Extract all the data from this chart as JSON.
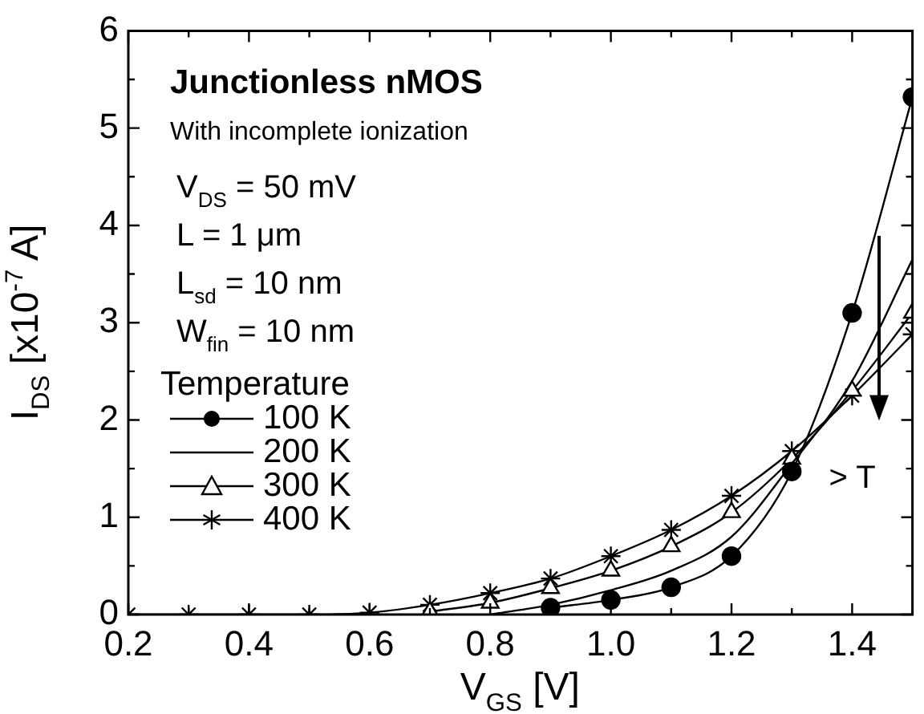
{
  "chart_data": {
    "type": "line",
    "title": "Junctionless nMOS",
    "subtitle": "With incomplete ionization",
    "xlabel": "V$_{GS}$ [V]",
    "ylabel": "I$_{DS}$ [x10$^{-7}$ A]",
    "legend_title": "Temperature",
    "legend": "left",
    "annotations": [
      "V$_{DS}$ = 50 mV",
      "L = 1 μm",
      "L$_{sd}$ = 10 nm",
      "W$_{fin}$ = 10 nm",
      "> T"
    ],
    "xlim": [
      0.2,
      1.5
    ],
    "xticks": [
      0.2,
      {
        "value": 0.3,
        "label": null
      },
      0.4,
      {
        "value": 0.5,
        "label": null
      },
      0.6,
      {
        "value": 0.7,
        "label": null
      },
      0.8,
      {
        "value": 0.9,
        "label": null
      },
      {
        "value": 1,
        "label": "1.0"
      },
      {
        "value": 1.1,
        "label": null
      },
      1.2,
      {
        "value": 1.3,
        "label": null
      },
      1.4
    ],
    "ylim": [
      0,
      6
    ],
    "yticks": [
      0,
      {
        "value": 0.5,
        "label": null
      },
      1,
      {
        "value": 1.5,
        "label": null
      },
      2,
      {
        "value": 2.5,
        "label": null
      },
      3,
      {
        "value": 3.5,
        "label": null
      },
      4,
      {
        "value": 4.5,
        "label": null
      },
      5,
      {
        "value": 5.5,
        "label": null
      },
      6
    ],
    "line_style": "solid",
    "series": [
      {
        "name": "100 K",
        "color": "#000000",
        "marker": "circle",
        "x": [
          0.9,
          1.0,
          1.1,
          1.2,
          1.3,
          1.4,
          1.5
        ],
        "values": [
          0.07,
          0.15,
          0.28,
          0.6,
          1.47,
          3.1,
          5.32
        ]
      },
      {
        "name": "200 K",
        "color": "#000000",
        "marker": "none",
        "x": [
          0.8,
          0.9,
          1.0,
          1.1,
          1.2,
          1.3,
          1.4,
          1.5
        ],
        "values": [
          0,
          0.1,
          0.25,
          0.45,
          0.8,
          1.55,
          2.4,
          3.65
        ]
      },
      {
        "name": "300 K",
        "color": "#000000",
        "marker": "triangle",
        "x": [
          0.7,
          0.8,
          0.9,
          1.0,
          1.1,
          1.2,
          1.3,
          1.4,
          1.5
        ],
        "values": [
          0.03,
          0.12,
          0.27,
          0.45,
          0.7,
          1.05,
          1.6,
          2.3,
          3.1
        ]
      },
      {
        "name": "400 K",
        "color": "#000000",
        "marker": "cross",
        "x": [
          0.2,
          0.3,
          0.4,
          0.5,
          0.6,
          0.7,
          0.8,
          0.9,
          1.0,
          1.1,
          1.2,
          1.3,
          1.4,
          1.5
        ],
        "values": [
          0,
          0,
          0,
          0,
          0.02,
          0.1,
          0.22,
          0.37,
          0.6,
          0.87,
          1.22,
          1.68,
          2.25,
          2.88
        ]
      }
    ]
  }
}
